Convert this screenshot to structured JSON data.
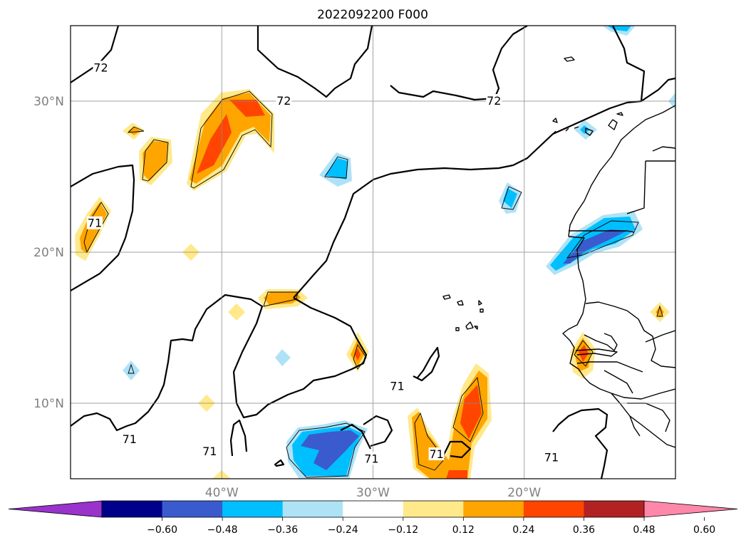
{
  "chart_data": {
    "type": "heatmap",
    "title": "2022092200 F000",
    "projection": "map",
    "xlim": [
      -50,
      -10
    ],
    "ylim": [
      5,
      35
    ],
    "x_ticks": [
      {
        "value": -40,
        "label": "40°W"
      },
      {
        "value": -30,
        "label": "30°W"
      },
      {
        "value": -20,
        "label": "20°W"
      }
    ],
    "y_ticks": [
      {
        "value": 30,
        "label": "30°N"
      },
      {
        "value": 20,
        "label": "20°N"
      },
      {
        "value": 10,
        "label": "10°N"
      }
    ],
    "grid": true,
    "colorbar": {
      "orientation": "horizontal",
      "placement": "bottom",
      "extend": "both",
      "levels": [
        -0.72,
        -0.6,
        -0.48,
        -0.36,
        -0.24,
        -0.12,
        0.12,
        0.24,
        0.36,
        0.48,
        0.6,
        0.72
      ],
      "colors": [
        "#9933cc",
        "#00008b",
        "#3a5bcd",
        "#00bfff",
        "#aee3f7",
        "#ffffff",
        "#ffe98a",
        "#ffa500",
        "#ff4500",
        "#b22222",
        "#ff88aa"
      ],
      "tick_labels": [
        "-0.60",
        "-0.48",
        "-0.36",
        "-0.24",
        "-0.12",
        "0.12",
        "0.24",
        "0.36",
        "0.48",
        "0.60"
      ]
    },
    "contour_lines": {
      "color": "#000000",
      "labels": [
        {
          "text": "72",
          "lon": -48,
          "lat": 32.2
        },
        {
          "text": "72",
          "lon": -35.9,
          "lat": 30.0
        },
        {
          "text": "72",
          "lon": -22,
          "lat": 30.0
        },
        {
          "text": "71",
          "lon": -48.4,
          "lat": 21.9
        },
        {
          "text": "71",
          "lon": -28.4,
          "lat": 11.1
        },
        {
          "text": "71",
          "lon": -46.1,
          "lat": 7.6
        },
        {
          "text": "71",
          "lon": -40.8,
          "lat": 6.8
        },
        {
          "text": "71",
          "lon": -30.1,
          "lat": 6.3
        },
        {
          "text": "71",
          "lon": -25.8,
          "lat": 6.6
        },
        {
          "text": "71",
          "lon": -18.2,
          "lat": 6.4
        }
      ]
    },
    "anomaly_regions": [
      {
        "level": 0.24,
        "lon": -38.6,
        "lat": 27.8
      },
      {
        "level": 0.48,
        "lon": -37.9,
        "lat": 29.2
      },
      {
        "level": 0.24,
        "lon": -44.8,
        "lat": 26.1
      },
      {
        "level": 0.24,
        "lon": -48.6,
        "lat": 21.6
      },
      {
        "level": 0.12,
        "lon": -42.1,
        "lat": 20.0
      },
      {
        "level": 0.24,
        "lon": -36.2,
        "lat": 16.8
      },
      {
        "level": 0.36,
        "lon": -31.0,
        "lat": 13.3
      },
      {
        "level": 0.36,
        "lon": -24.1,
        "lat": 8.6
      },
      {
        "level": 0.24,
        "lon": -26.8,
        "lat": 7.3
      },
      {
        "level": 0.36,
        "lon": -15.3,
        "lat": 13.2
      },
      {
        "level": 0.12,
        "lon": -11.0,
        "lat": 16.0
      },
      {
        "level": -0.36,
        "lon": -33.0,
        "lat": 6.8
      },
      {
        "level": -0.48,
        "lon": -15.8,
        "lat": 20.6
      },
      {
        "level": -0.24,
        "lon": -32.2,
        "lat": 25.3
      },
      {
        "level": -0.24,
        "lon": -21.0,
        "lat": 23.5
      },
      {
        "level": -0.24,
        "lon": -16.5,
        "lat": 28.0
      },
      {
        "level": -0.12,
        "lon": -35.7,
        "lat": 13.0
      },
      {
        "level": -0.12,
        "lon": -46.1,
        "lat": 12.0
      }
    ]
  }
}
